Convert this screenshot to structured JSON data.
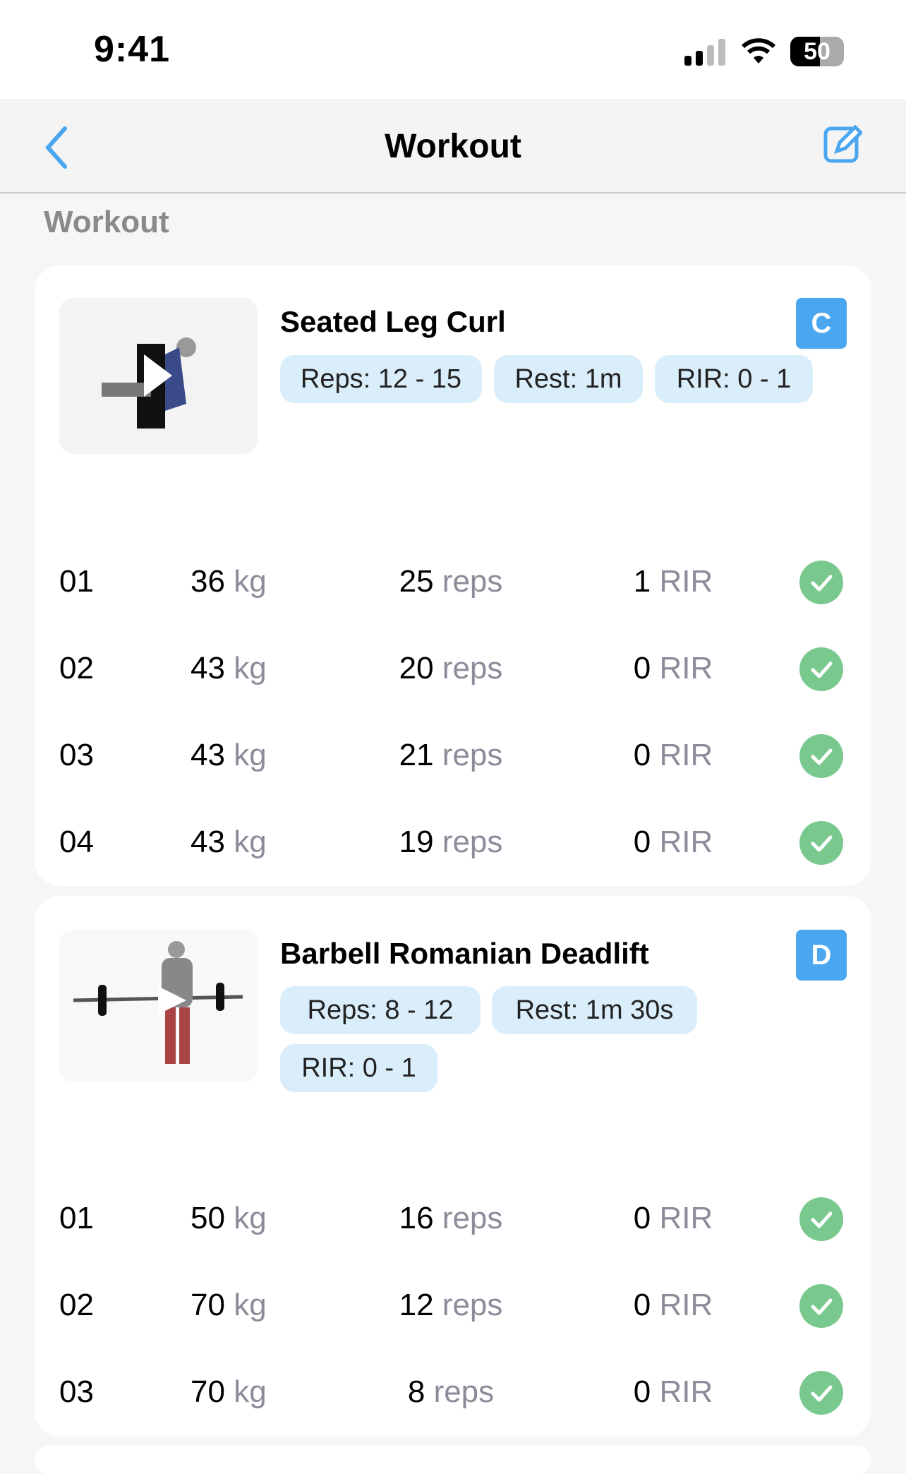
{
  "status": {
    "time": "9:41",
    "battery": "50"
  },
  "nav": {
    "title": "Workout"
  },
  "section_title": "Workout",
  "exercises": [
    {
      "name": "Seated Leg Curl",
      "badge": "C",
      "chips": [
        "Reps: 12 - 15",
        "Rest: 1m",
        "RIR: 0 - 1"
      ],
      "sets": [
        {
          "n": "01",
          "w": "36",
          "r": "25",
          "rir": "1"
        },
        {
          "n": "02",
          "w": "43",
          "r": "20",
          "rir": "0"
        },
        {
          "n": "03",
          "w": "43",
          "r": "21",
          "rir": "0"
        },
        {
          "n": "04",
          "w": "43",
          "r": "19",
          "rir": "0"
        }
      ]
    },
    {
      "name": "Barbell Romanian Deadlift",
      "badge": "D",
      "chips": [
        "Reps: 8 - 12",
        "Rest: 1m 30s",
        "RIR: 0 - 1"
      ],
      "sets": [
        {
          "n": "01",
          "w": "50",
          "r": "16",
          "rir": "0"
        },
        {
          "n": "02",
          "w": "70",
          "r": "12",
          "rir": "0"
        },
        {
          "n": "03",
          "w": "70",
          "r": "8",
          "rir": "0"
        }
      ]
    }
  ],
  "units": {
    "weight": "kg",
    "reps": "reps",
    "rir": "RIR"
  },
  "colors": {
    "accent": "#4aa6ef",
    "chip": "#daedfb",
    "done": "#79c98e"
  }
}
